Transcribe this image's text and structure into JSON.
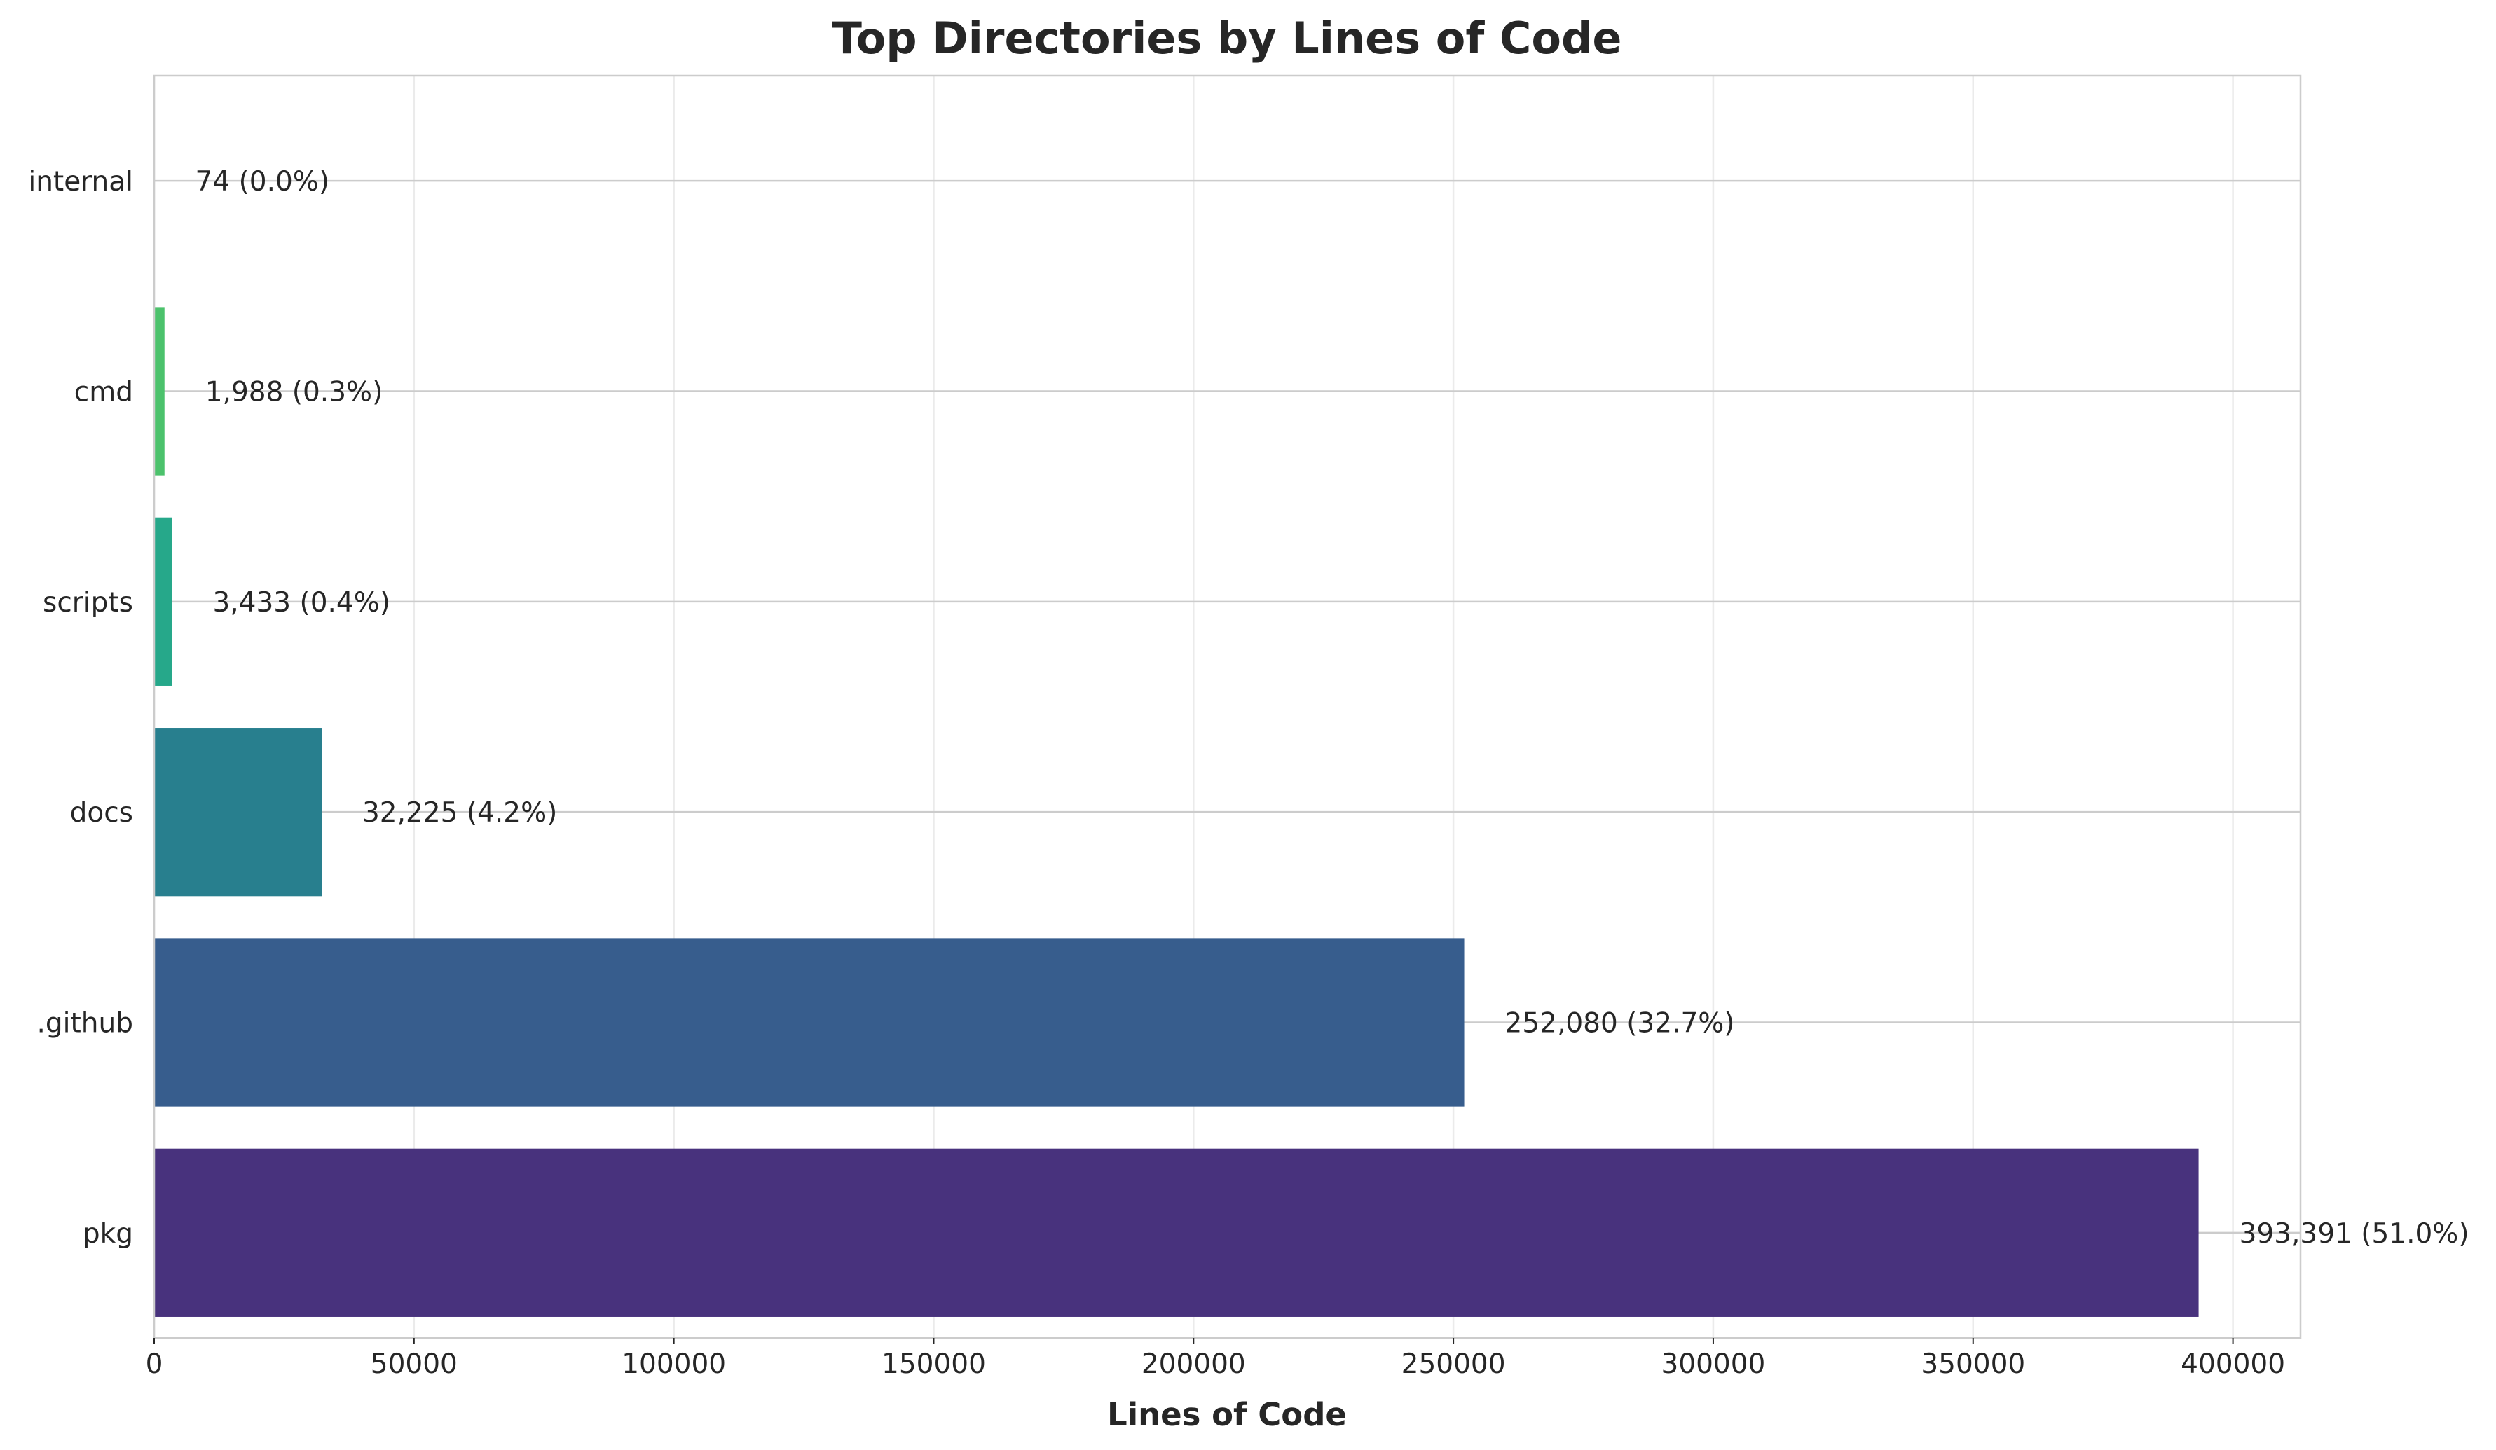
{
  "chart_data": {
    "type": "bar",
    "orientation": "horizontal",
    "title": "Top Directories by Lines of Code",
    "xlabel": "Lines of Code",
    "ylabel": "",
    "xlim": [
      0,
      413000
    ],
    "xticks": [
      0,
      50000,
      100000,
      150000,
      200000,
      250000,
      300000,
      350000,
      400000
    ],
    "xtick_labels": [
      "0",
      "50000",
      "100000",
      "150000",
      "200000",
      "250000",
      "300000",
      "350000",
      "400000"
    ],
    "grid": true,
    "categories": [
      "pkg",
      ".github",
      "docs",
      "scripts",
      "cmd",
      "internal"
    ],
    "values": [
      393391,
      252080,
      32225,
      3433,
      1988,
      74
    ],
    "labels": [
      "393,391 (51.0%)",
      "252,080 (32.7%)",
      "32,225 (4.2%)",
      "3,433 (0.4%)",
      "1,988 (0.3%)",
      "74 (0.0%)"
    ],
    "colors": [
      "#48327d",
      "#375d8d",
      "#287f8e",
      "#26a88a",
      "#4cc26c",
      "#a4d43c"
    ]
  }
}
